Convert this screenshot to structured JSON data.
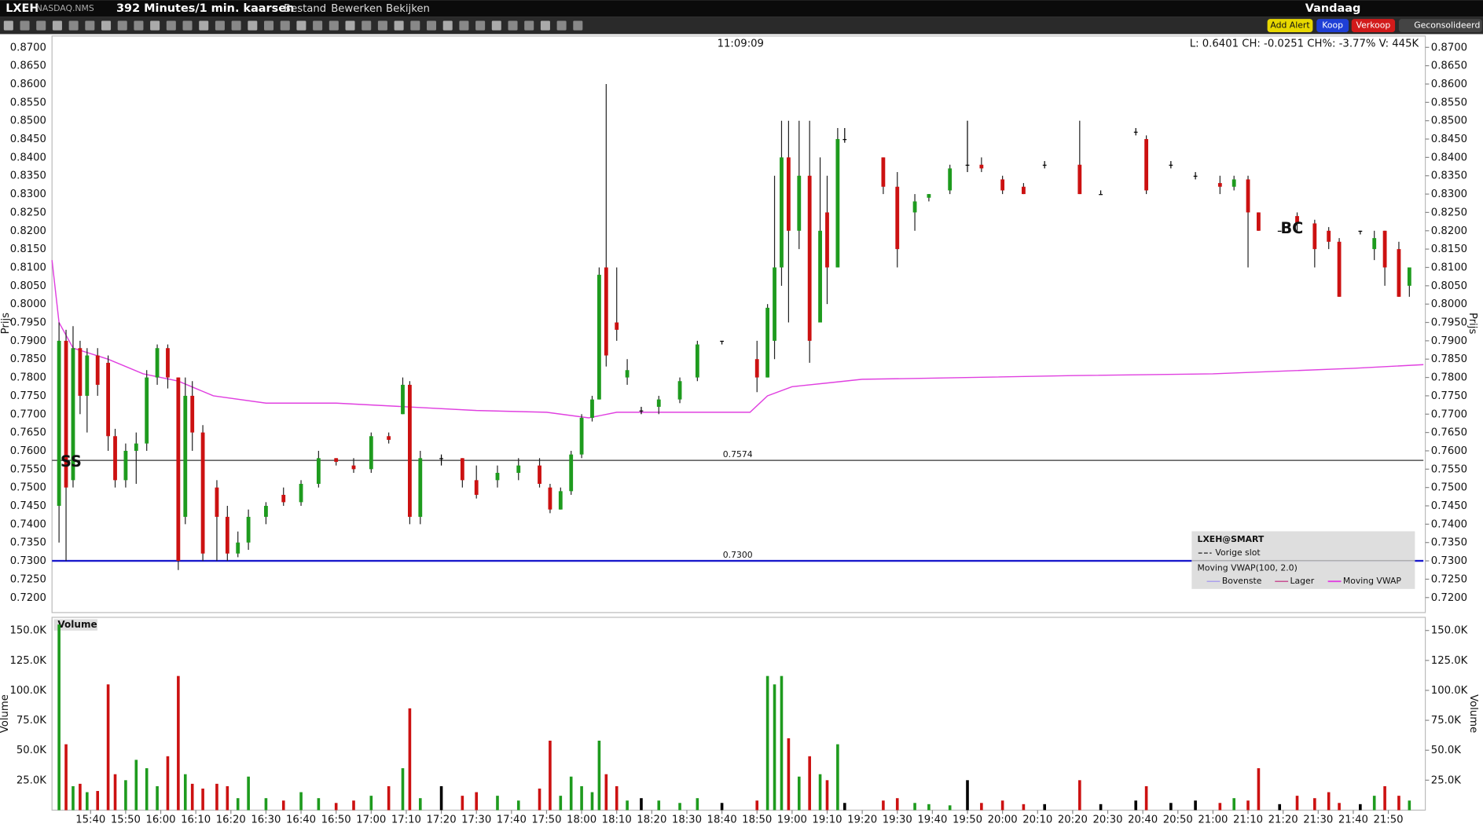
{
  "toolbar": {
    "symbol": "LXEH",
    "exchange": "NASDAQ.NMS",
    "period": "392 Minutes/1 min. kaarsen",
    "menus": [
      "Bestand",
      "Bewerken",
      "Bekijken"
    ],
    "range": "Vandaag",
    "buttons": [
      "Add Alert",
      "Koop",
      "Verkoop",
      "Geconsolideerd"
    ]
  },
  "header": {
    "time": "11:09:09",
    "quote": "L: 0.6401 CH: -0.0251 CH%: -3.77% V: 445K"
  },
  "annotations": {
    "ss": "SS",
    "bc": "BC"
  },
  "legend": {
    "title": "LXEH@SMART",
    "prev_close": "Vorige slot",
    "study": "Moving VWAP(100, 2.0)",
    "upper": "Bovenste",
    "lower": "Lager"
  },
  "chart_data": [
    {
      "type": "candlestick",
      "ylabel": "Prijs",
      "up_color": "#1e9b1e",
      "down_color": "#cc1111",
      "x": [
        931,
        933,
        935,
        937,
        939,
        942,
        945,
        947,
        950,
        953,
        956,
        959,
        962,
        965,
        967,
        969,
        972,
        976,
        979,
        982,
        985,
        990,
        995,
        1000,
        1005,
        1010,
        1015,
        1020,
        1025,
        1029,
        1031,
        1034,
        1040,
        1046,
        1050,
        1056,
        1062,
        1068,
        1071,
        1074,
        1077,
        1080,
        1083,
        1085,
        1087,
        1090,
        1093,
        1097,
        1102,
        1108,
        1113,
        1120,
        1130,
        1133,
        1135,
        1137,
        1139,
        1142,
        1145,
        1148,
        1150,
        1153,
        1155,
        1166,
        1170,
        1175,
        1179,
        1185,
        1190,
        1194,
        1200,
        1206,
        1212,
        1222,
        1228,
        1238,
        1241,
        1248,
        1255,
        1262,
        1266,
        1270,
        1273,
        1279,
        1284,
        1289,
        1293,
        1296,
        1302,
        1306,
        1309,
        1313,
        1316
      ],
      "open": [
        0.745,
        0.79,
        0.752,
        0.788,
        0.775,
        0.786,
        0.784,
        0.764,
        0.752,
        0.76,
        0.762,
        0.78,
        0.788,
        0.78,
        0.742,
        0.775,
        0.765,
        0.75,
        0.742,
        0.732,
        0.735,
        0.742,
        0.748,
        0.746,
        0.751,
        0.758,
        0.756,
        0.755,
        0.764,
        0.77,
        0.778,
        0.742,
        0.758,
        0.758,
        0.752,
        0.752,
        0.754,
        0.756,
        0.75,
        0.744,
        0.749,
        0.759,
        0.769,
        0.774,
        0.81,
        0.795,
        0.78,
        0.771,
        0.772,
        0.774,
        0.78,
        0.79,
        0.785,
        0.78,
        0.79,
        0.81,
        0.84,
        0.82,
        0.835,
        0.795,
        0.825,
        0.81,
        0.845,
        0.84,
        0.832,
        0.825,
        0.829,
        0.831,
        0.838,
        0.838,
        0.834,
        0.832,
        0.838,
        0.838,
        0.83,
        0.847,
        0.845,
        0.838,
        0.835,
        0.833,
        0.832,
        0.834,
        0.825,
        0.82,
        0.824,
        0.822,
        0.82,
        0.817,
        0.82,
        0.815,
        0.82,
        0.815,
        0.805
      ],
      "high": [
        0.795,
        0.793,
        0.794,
        0.79,
        0.788,
        0.788,
        0.786,
        0.766,
        0.762,
        0.765,
        0.782,
        0.789,
        0.789,
        0.78,
        0.78,
        0.779,
        0.767,
        0.752,
        0.745,
        0.738,
        0.744,
        0.746,
        0.75,
        0.752,
        0.76,
        0.758,
        0.758,
        0.765,
        0.765,
        0.78,
        0.779,
        0.76,
        0.759,
        0.758,
        0.756,
        0.756,
        0.758,
        0.758,
        0.751,
        0.75,
        0.76,
        0.77,
        0.775,
        0.81,
        0.86,
        0.81,
        0.785,
        0.772,
        0.775,
        0.78,
        0.79,
        0.79,
        0.79,
        0.8,
        0.835,
        0.85,
        0.85,
        0.85,
        0.85,
        0.84,
        0.835,
        0.848,
        0.848,
        0.84,
        0.836,
        0.83,
        0.83,
        0.838,
        0.85,
        0.84,
        0.835,
        0.833,
        0.839,
        0.85,
        0.831,
        0.848,
        0.846,
        0.839,
        0.836,
        0.835,
        0.835,
        0.835,
        0.825,
        0.82,
        0.825,
        0.823,
        0.821,
        0.818,
        0.82,
        0.82,
        0.82,
        0.817,
        0.81
      ],
      "low": [
        0.735,
        0.73,
        0.75,
        0.77,
        0.765,
        0.775,
        0.76,
        0.75,
        0.75,
        0.751,
        0.76,
        0.778,
        0.777,
        0.7275,
        0.74,
        0.76,
        0.73,
        0.73,
        0.73,
        0.731,
        0.733,
        0.74,
        0.745,
        0.745,
        0.75,
        0.756,
        0.754,
        0.754,
        0.762,
        0.77,
        0.74,
        0.74,
        0.756,
        0.75,
        0.747,
        0.75,
        0.752,
        0.75,
        0.743,
        0.744,
        0.748,
        0.758,
        0.768,
        0.774,
        0.783,
        0.79,
        0.778,
        0.77,
        0.77,
        0.773,
        0.779,
        0.789,
        0.776,
        0.78,
        0.785,
        0.805,
        0.795,
        0.815,
        0.784,
        0.795,
        0.8,
        0.81,
        0.844,
        0.83,
        0.81,
        0.82,
        0.828,
        0.83,
        0.836,
        0.836,
        0.83,
        0.83,
        0.837,
        0.83,
        0.83,
        0.846,
        0.83,
        0.837,
        0.834,
        0.83,
        0.831,
        0.81,
        0.82,
        0.82,
        0.82,
        0.81,
        0.815,
        0.802,
        0.819,
        0.812,
        0.805,
        0.802,
        0.802
      ],
      "close": [
        0.79,
        0.75,
        0.788,
        0.775,
        0.786,
        0.778,
        0.764,
        0.752,
        0.76,
        0.762,
        0.78,
        0.788,
        0.78,
        0.73,
        0.775,
        0.765,
        0.732,
        0.742,
        0.732,
        0.735,
        0.742,
        0.745,
        0.746,
        0.751,
        0.758,
        0.757,
        0.755,
        0.764,
        0.763,
        0.778,
        0.742,
        0.758,
        0.758,
        0.752,
        0.748,
        0.754,
        0.756,
        0.751,
        0.744,
        0.749,
        0.759,
        0.769,
        0.774,
        0.808,
        0.786,
        0.793,
        0.782,
        0.771,
        0.774,
        0.779,
        0.789,
        0.79,
        0.78,
        0.799,
        0.81,
        0.84,
        0.82,
        0.835,
        0.79,
        0.82,
        0.81,
        0.845,
        0.845,
        0.832,
        0.815,
        0.828,
        0.83,
        0.837,
        0.838,
        0.837,
        0.831,
        0.83,
        0.838,
        0.83,
        0.83,
        0.847,
        0.831,
        0.838,
        0.835,
        0.832,
        0.834,
        0.825,
        0.82,
        0.82,
        0.822,
        0.815,
        0.817,
        0.802,
        0.82,
        0.818,
        0.81,
        0.802,
        0.81
      ],
      "xlim": [
        929,
        1320
      ],
      "xticks": [
        {
          "value": 940,
          "label": "15:40"
        },
        {
          "value": 950,
          "label": "15:50"
        },
        {
          "value": 960,
          "label": "16:00"
        },
        {
          "value": 970,
          "label": "16:10"
        },
        {
          "value": 980,
          "label": "16:20"
        },
        {
          "value": 990,
          "label": "16:30"
        },
        {
          "value": 1000,
          "label": "16:40"
        },
        {
          "value": 1010,
          "label": "16:50"
        },
        {
          "value": 1020,
          "label": "17:00"
        },
        {
          "value": 1030,
          "label": "17:10"
        },
        {
          "value": 1040,
          "label": "17:20"
        },
        {
          "value": 1050,
          "label": "17:30"
        },
        {
          "value": 1060,
          "label": "17:40"
        },
        {
          "value": 1070,
          "label": "17:50"
        },
        {
          "value": 1080,
          "label": "18:00"
        },
        {
          "value": 1090,
          "label": "18:10"
        },
        {
          "value": 1100,
          "label": "18:20"
        },
        {
          "value": 1110,
          "label": "18:30"
        },
        {
          "value": 1120,
          "label": "18:40"
        },
        {
          "value": 1130,
          "label": "18:50"
        },
        {
          "value": 1140,
          "label": "19:00"
        },
        {
          "value": 1150,
          "label": "19:10"
        },
        {
          "value": 1160,
          "label": "19:20"
        },
        {
          "value": 1170,
          "label": "19:30"
        },
        {
          "value": 1180,
          "label": "19:40"
        },
        {
          "value": 1190,
          "label": "19:50"
        },
        {
          "value": 1200,
          "label": "20:00"
        },
        {
          "value": 1210,
          "label": "20:10"
        },
        {
          "value": 1220,
          "label": "20:20"
        },
        {
          "value": 1230,
          "label": "20:30"
        },
        {
          "value": 1240,
          "label": "20:40"
        },
        {
          "value": 1250,
          "label": "20:50"
        },
        {
          "value": 1260,
          "label": "21:00"
        },
        {
          "value": 1270,
          "label": "21:10"
        },
        {
          "value": 1280,
          "label": "21:20"
        },
        {
          "value": 1290,
          "label": "21:30"
        },
        {
          "value": 1300,
          "label": "21:40"
        },
        {
          "value": 1310,
          "label": "21:50"
        }
      ],
      "ylim": [
        0.7159,
        0.8731
      ],
      "yticks": [
        {
          "value": 0.72,
          "label": "0.7200"
        },
        {
          "value": 0.725,
          "label": "0.7250"
        },
        {
          "value": 0.73,
          "label": "0.7300"
        },
        {
          "value": 0.735,
          "label": "0.7350"
        },
        {
          "value": 0.74,
          "label": "0.7400"
        },
        {
          "value": 0.745,
          "label": "0.7450"
        },
        {
          "value": 0.75,
          "label": "0.7500"
        },
        {
          "value": 0.755,
          "label": "0.7550"
        },
        {
          "value": 0.76,
          "label": "0.7600"
        },
        {
          "value": 0.765,
          "label": "0.7650"
        },
        {
          "value": 0.77,
          "label": "0.7700"
        },
        {
          "value": 0.775,
          "label": "0.7750"
        },
        {
          "value": 0.78,
          "label": "0.7800"
        },
        {
          "value": 0.785,
          "label": "0.7850"
        },
        {
          "value": 0.79,
          "label": "0.7900"
        },
        {
          "value": 0.795,
          "label": "0.7950"
        },
        {
          "value": 0.8,
          "label": "0.8000"
        },
        {
          "value": 0.805,
          "label": "0.8050"
        },
        {
          "value": 0.81,
          "label": "0.8100"
        },
        {
          "value": 0.815,
          "label": "0.8150"
        },
        {
          "value": 0.82,
          "label": "0.8200"
        },
        {
          "value": 0.825,
          "label": "0.8250"
        },
        {
          "value": 0.83,
          "label": "0.8300"
        },
        {
          "value": 0.835,
          "label": "0.8350"
        },
        {
          "value": 0.84,
          "label": "0.8400"
        },
        {
          "value": 0.845,
          "label": "0.8450"
        },
        {
          "value": 0.85,
          "label": "0.8500"
        },
        {
          "value": 0.855,
          "label": "0.8550"
        },
        {
          "value": 0.86,
          "label": "0.8600"
        },
        {
          "value": 0.865,
          "label": "0.8650"
        },
        {
          "value": 0.87,
          "label": "0.8700"
        }
      ],
      "levels": [
        {
          "value": 0.7574,
          "label": "0.7574",
          "color": "#333333"
        },
        {
          "value": 0.73,
          "label": "0.7300",
          "color": "#1a1acc"
        }
      ],
      "vwap": {
        "name": "Moving VWAP",
        "color": "#e040e0",
        "x": [
          929,
          931,
          935,
          945,
          955,
          965,
          975,
          990,
          1010,
          1030,
          1050,
          1070,
          1082,
          1090,
          1110,
          1128,
          1133,
          1140,
          1150,
          1160,
          1180,
          1220,
          1260,
          1300,
          1320
        ],
        "values": [
          0.812,
          0.795,
          0.788,
          0.785,
          0.781,
          0.779,
          0.775,
          0.773,
          0.773,
          0.772,
          0.771,
          0.7705,
          0.769,
          0.7705,
          0.7705,
          0.7705,
          0.775,
          0.7775,
          0.7785,
          0.7795,
          0.7798,
          0.7805,
          0.781,
          0.7825,
          0.7835
        ]
      }
    },
    {
      "type": "bar",
      "title": "Volume",
      "ylabel": "Volume",
      "values": [
        155000,
        55000,
        20000,
        22000,
        15000,
        16000,
        105000,
        30000,
        25000,
        42000,
        35000,
        20000,
        45000,
        112000,
        30000,
        22000,
        18000,
        22000,
        20000,
        10000,
        28000,
        10000,
        8000,
        15000,
        10000,
        6000,
        8000,
        12000,
        20000,
        35000,
        85000,
        10000,
        20000,
        12000,
        15000,
        12000,
        8000,
        18000,
        58000,
        12000,
        28000,
        20000,
        15000,
        58000,
        30000,
        20000,
        8000,
        10000,
        8000,
        6000,
        10000,
        6000,
        8000,
        112000,
        105000,
        112000,
        60000,
        28000,
        45000,
        30000,
        25000,
        55000,
        6000,
        8000,
        10000,
        6000,
        5000,
        4000,
        25000,
        6000,
        8000,
        5000,
        5000,
        25000,
        5000,
        8000,
        20000,
        6000,
        8000,
        6000,
        10000,
        8000,
        35000,
        5000,
        12000,
        10000,
        15000,
        6000,
        5000,
        12000,
        20000,
        12000,
        8000
      ],
      "ylim": [
        0,
        161000
      ],
      "yticks": [
        {
          "value": 25000,
          "label": "25.0K"
        },
        {
          "value": 50000,
          "label": "50.0K"
        },
        {
          "value": 75000,
          "label": "75.0K"
        },
        {
          "value": 100000,
          "label": "100.0K"
        },
        {
          "value": 125000,
          "label": "125.0K"
        },
        {
          "value": 150000,
          "label": "150.0K"
        }
      ]
    }
  ]
}
